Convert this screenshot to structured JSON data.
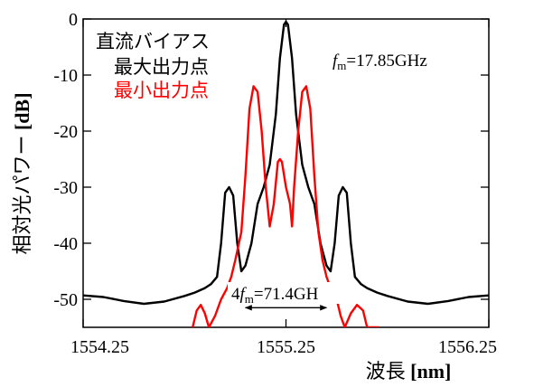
{
  "chart_data": {
    "type": "line",
    "title": "",
    "xlabel": "波長",
    "xlabel_unit": "[nm]",
    "ylabel": "相対光パワー",
    "ylabel_unit": "[dB]",
    "xlim": [
      1554.25,
      1556.25
    ],
    "ylim": [
      -55,
      0
    ],
    "x_ticks": [
      1554.25,
      1555.25,
      1556.25
    ],
    "x_tick_labels": [
      "1554.25",
      "1555.25",
      "1556.25"
    ],
    "y_ticks": [
      0,
      -10,
      -20,
      -30,
      -40,
      -50
    ],
    "y_tick_labels": [
      "0",
      "-10",
      "-20",
      "-30",
      "-40",
      "-50"
    ],
    "grid": false,
    "legend": {
      "placement": "top-left",
      "heading": "直流バイアス",
      "entries": [
        "最大出力点",
        "最小出力点"
      ]
    },
    "series": [
      {
        "name": "最大出力点",
        "color": "#000000",
        "x": [
          1554.25,
          1554.35,
          1554.45,
          1554.55,
          1554.65,
          1554.75,
          1554.8,
          1554.85,
          1554.88,
          1554.91,
          1554.93,
          1554.95,
          1554.97,
          1554.99,
          1555.01,
          1555.03,
          1555.05,
          1555.08,
          1555.11,
          1555.14,
          1555.17,
          1555.2,
          1555.22,
          1555.24,
          1555.25,
          1555.26,
          1555.28,
          1555.3,
          1555.33,
          1555.36,
          1555.39,
          1555.42,
          1555.45,
          1555.47,
          1555.49,
          1555.51,
          1555.53,
          1555.55,
          1555.57,
          1555.59,
          1555.62,
          1555.65,
          1555.7,
          1555.75,
          1555.85,
          1555.95,
          1556.05,
          1556.15,
          1556.25
        ],
        "y": [
          -49.3,
          -49.6,
          -50.3,
          -50.8,
          -50.4,
          -49.4,
          -48.8,
          -48.0,
          -47.3,
          -46.0,
          -40.0,
          -31.0,
          -30.0,
          -31.5,
          -40.0,
          -45.0,
          -44.0,
          -40.0,
          -33.0,
          -30.0,
          -26.0,
          -17.0,
          -7.0,
          -1.0,
          -0.5,
          -1.0,
          -7.0,
          -17.0,
          -26.0,
          -30.0,
          -33.0,
          -40.0,
          -44.0,
          -45.0,
          -40.0,
          -31.5,
          -30.0,
          -31.0,
          -40.0,
          -46.0,
          -47.3,
          -48.0,
          -48.8,
          -49.4,
          -50.4,
          -50.8,
          -50.3,
          -49.6,
          -49.3
        ]
      },
      {
        "name": "最小出力点",
        "color": "#ff0000",
        "x": [
          1554.79,
          1554.81,
          1554.83,
          1554.85,
          1554.87,
          1554.9,
          1554.93,
          1554.96,
          1554.98,
          1555.0,
          1555.03,
          1555.05,
          1555.07,
          1555.09,
          1555.11,
          1555.13,
          1555.15,
          1555.17,
          1555.19,
          1555.21,
          1555.22,
          1555.23,
          1555.25,
          1555.27,
          1555.28,
          1555.29,
          1555.31,
          1555.33,
          1555.35,
          1555.37,
          1555.39,
          1555.41,
          1555.43,
          1555.45,
          1555.47,
          1555.5,
          1555.52,
          1555.54,
          1555.57,
          1555.6,
          1555.63,
          1555.65,
          1555.67,
          1555.69,
          1555.71
        ],
        "y": [
          -55.0,
          -52.0,
          -51.0,
          -52.5,
          -55.0,
          -53.0,
          -50.0,
          -48.0,
          -46.0,
          -43.0,
          -38.0,
          -28.0,
          -16.0,
          -12.0,
          -13.0,
          -20.0,
          -30.0,
          -37.0,
          -33.0,
          -25.5,
          -25.0,
          -25.5,
          -30.0,
          -33.0,
          -37.0,
          -30.0,
          -20.0,
          -13.0,
          -12.0,
          -16.0,
          -28.0,
          -38.0,
          -43.0,
          -46.0,
          -48.0,
          -50.0,
          -53.0,
          -55.0,
          -52.5,
          -51.0,
          -52.0,
          -55.0,
          -55.0,
          -55.0,
          -55.0
        ]
      }
    ],
    "annotations": {
      "fm_label": {
        "italic": "f",
        "sub": "m",
        "rest": "=17.85GHz"
      },
      "spacing_label": {
        "prefix": "4",
        "italic": "f",
        "sub": "m",
        "rest": "=71.4GH"
      },
      "arrow": {
        "x_from": 1555.05,
        "x_to": 1555.45,
        "y": -51.5
      }
    }
  }
}
